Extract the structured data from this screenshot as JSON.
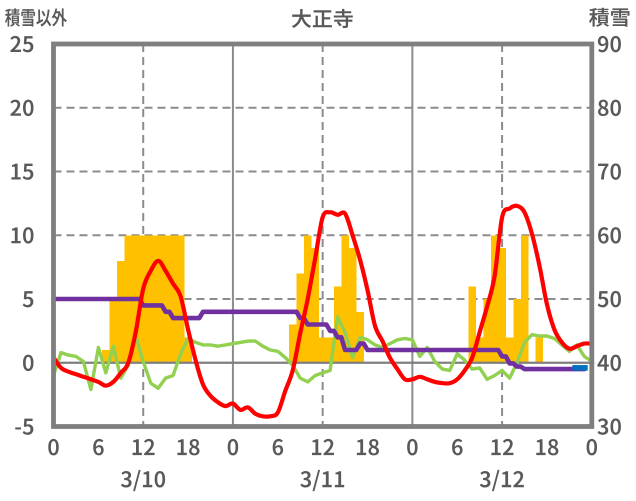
{
  "chart_data": {
    "type": "bar+line combo, dual axis",
    "title": "大正寺",
    "left_axis": {
      "label": "積雪以外",
      "min": -5,
      "max": 25,
      "step": 5,
      "tick_labels": [
        "25",
        "20",
        "15",
        "10",
        "5",
        "0",
        "-5"
      ]
    },
    "right_axis": {
      "label": "積雪",
      "min": 30,
      "max": 90,
      "step": 10,
      "tick_labels": [
        "90",
        "80",
        "70",
        "60",
        "50",
        "40",
        "30"
      ]
    },
    "x_axis": {
      "hours_total": 72,
      "tick_interval_hours": 6,
      "tick_labels": [
        "0",
        "6",
        "12",
        "18",
        "0",
        "6",
        "12",
        "18",
        "0",
        "6",
        "12",
        "18",
        "0"
      ],
      "day_labels": [
        "3/10",
        "3/11",
        "3/12"
      ],
      "dashed_gridlines_at_hours": [
        12,
        36,
        60
      ],
      "solid_gridlines_at_hours": [
        24,
        48
      ]
    },
    "legend": "none",
    "series": {
      "bars_orange": {
        "type": "bar",
        "axis": "left",
        "color": "#FFC000",
        "unit_hours": 1,
        "values": [
          0,
          0,
          0,
          0,
          0,
          0,
          0,
          1,
          5,
          8,
          10,
          10,
          10,
          10,
          10,
          10,
          10,
          10,
          2,
          0,
          0,
          0,
          0,
          0,
          0,
          0,
          0,
          0,
          0,
          0,
          0,
          0,
          3,
          7,
          10,
          9,
          2,
          2,
          6,
          10,
          9,
          4,
          0,
          0,
          0,
          0,
          0,
          0,
          0,
          0,
          0,
          0,
          0,
          0,
          0,
          0,
          6,
          2,
          5,
          10,
          9,
          2,
          5,
          10,
          0,
          2,
          0,
          0,
          0,
          0,
          0,
          0
        ]
      },
      "line_red": {
        "type": "line",
        "axis": "left",
        "color": "#FF0000",
        "smooth": true,
        "values": [
          0.4,
          -0.4,
          -0.7,
          -0.9,
          -1.1,
          -1.3,
          -1.5,
          -1.8,
          -1.5,
          -0.8,
          0.0,
          2.4,
          5.8,
          7.2,
          8.0,
          7.2,
          6.2,
          5.2,
          2.6,
          0.2,
          -1.7,
          -2.6,
          -3.1,
          -3.4,
          -3.2,
          -3.7,
          -3.5,
          -4.0,
          -4.2,
          -4.2,
          -3.9,
          -2.2,
          -0.6,
          2.3,
          5.0,
          8.2,
          11.4,
          11.8,
          11.6,
          11.7,
          10.0,
          8.1,
          5.7,
          2.9,
          1.7,
          0.4,
          -0.5,
          -1.3,
          -1.3,
          -1.1,
          -1.3,
          -1.5,
          -1.6,
          -1.6,
          -1.3,
          -0.6,
          0.4,
          2.4,
          4.4,
          6.8,
          11.4,
          12.1,
          12.3,
          11.8,
          10.1,
          7.6,
          4.6,
          2.6,
          1.6,
          1.1,
          1.3,
          1.5,
          1.5
        ]
      },
      "line_green": {
        "type": "line",
        "axis": "left",
        "color": "#92D050",
        "smooth": false,
        "values": [
          -1.0,
          0.8,
          0.6,
          0.5,
          0.1,
          -2.1,
          1.2,
          -0.8,
          1.3,
          -1.2,
          -0.2,
          2.1,
          0.1,
          -1.6,
          -2.0,
          -1.2,
          -1.0,
          0.7,
          1.9,
          1.6,
          1.4,
          1.4,
          1.3,
          1.4,
          1.5,
          1.6,
          1.7,
          1.7,
          1.3,
          1.0,
          0.9,
          0.4,
          -0.2,
          -1.2,
          -1.5,
          -1.0,
          -0.8,
          -0.6,
          3.6,
          2.4,
          0.4,
          2.0,
          1.8,
          1.4,
          1.2,
          1.5,
          1.8,
          1.9,
          1.8,
          0.5,
          1.2,
          0.1,
          -0.5,
          -0.6,
          0.7,
          0.2,
          -0.5,
          -0.4,
          -1.3,
          -1.0,
          -0.6,
          -1.2,
          0.0,
          1.6,
          2.2,
          2.1,
          2.1,
          1.9,
          1.4,
          0.9,
          1.4,
          0.5,
          0.1
        ]
      },
      "line_purple": {
        "type": "step-line",
        "axis": "right",
        "color": "#7030A0",
        "values": [
          50,
          50,
          50,
          50,
          50,
          50,
          50,
          50,
          50,
          50,
          50,
          50,
          49,
          49,
          49,
          48,
          47,
          47,
          47,
          47,
          48,
          48,
          48,
          48,
          48,
          48,
          48,
          48,
          48,
          48,
          48,
          48,
          48,
          47,
          46,
          46,
          46,
          45,
          44,
          42,
          42,
          43,
          42,
          42,
          42,
          42,
          42,
          42,
          42,
          42,
          42,
          42,
          42,
          42,
          42,
          42,
          42,
          42,
          42,
          42,
          41,
          39.9,
          39.4,
          39,
          39,
          39,
          39,
          39,
          39,
          39,
          39,
          39
        ]
      },
      "segment_blue": {
        "type": "line",
        "axis": "right",
        "color": "#0070C0",
        "start_hour": 69.4,
        "end_hour": 71.45,
        "value": 39.2
      }
    },
    "colors": {
      "plot_border": "#7F7F7F",
      "gridline": "#8C8C8C",
      "zero_line": "#7F7F7F",
      "text": "#595959",
      "background": "#FFFFFF"
    }
  }
}
